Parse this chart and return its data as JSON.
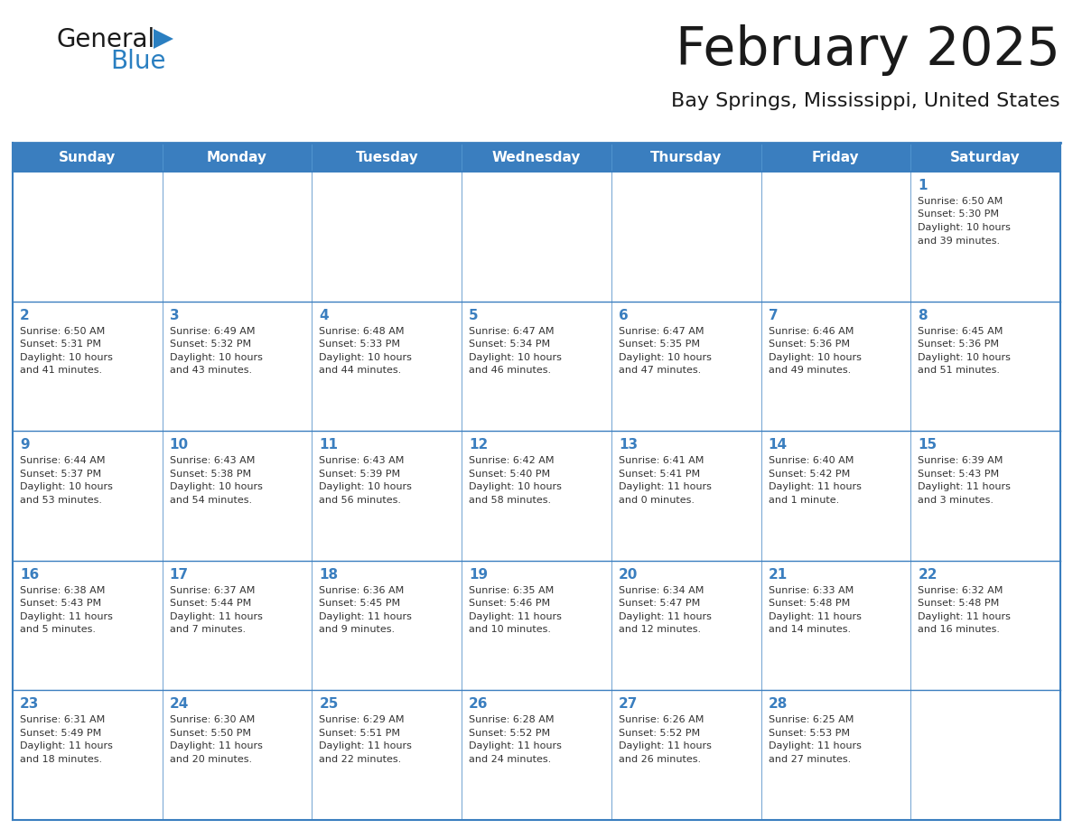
{
  "title": "February 2025",
  "subtitle": "Bay Springs, Mississippi, United States",
  "header_bg": "#3a7ebf",
  "header_text_color": "#ffffff",
  "cell_bg": "#ffffff",
  "border_color": "#3a7ebf",
  "day_headers": [
    "Sunday",
    "Monday",
    "Tuesday",
    "Wednesday",
    "Thursday",
    "Friday",
    "Saturday"
  ],
  "title_color": "#1a1a1a",
  "subtitle_color": "#1a1a1a",
  "day_number_color": "#3a7ebf",
  "cell_text_color": "#333333",
  "weeks": [
    [
      {
        "day": null,
        "info": null
      },
      {
        "day": null,
        "info": null
      },
      {
        "day": null,
        "info": null
      },
      {
        "day": null,
        "info": null
      },
      {
        "day": null,
        "info": null
      },
      {
        "day": null,
        "info": null
      },
      {
        "day": 1,
        "info": "Sunrise: 6:50 AM\nSunset: 5:30 PM\nDaylight: 10 hours\nand 39 minutes."
      }
    ],
    [
      {
        "day": 2,
        "info": "Sunrise: 6:50 AM\nSunset: 5:31 PM\nDaylight: 10 hours\nand 41 minutes."
      },
      {
        "day": 3,
        "info": "Sunrise: 6:49 AM\nSunset: 5:32 PM\nDaylight: 10 hours\nand 43 minutes."
      },
      {
        "day": 4,
        "info": "Sunrise: 6:48 AM\nSunset: 5:33 PM\nDaylight: 10 hours\nand 44 minutes."
      },
      {
        "day": 5,
        "info": "Sunrise: 6:47 AM\nSunset: 5:34 PM\nDaylight: 10 hours\nand 46 minutes."
      },
      {
        "day": 6,
        "info": "Sunrise: 6:47 AM\nSunset: 5:35 PM\nDaylight: 10 hours\nand 47 minutes."
      },
      {
        "day": 7,
        "info": "Sunrise: 6:46 AM\nSunset: 5:36 PM\nDaylight: 10 hours\nand 49 minutes."
      },
      {
        "day": 8,
        "info": "Sunrise: 6:45 AM\nSunset: 5:36 PM\nDaylight: 10 hours\nand 51 minutes."
      }
    ],
    [
      {
        "day": 9,
        "info": "Sunrise: 6:44 AM\nSunset: 5:37 PM\nDaylight: 10 hours\nand 53 minutes."
      },
      {
        "day": 10,
        "info": "Sunrise: 6:43 AM\nSunset: 5:38 PM\nDaylight: 10 hours\nand 54 minutes."
      },
      {
        "day": 11,
        "info": "Sunrise: 6:43 AM\nSunset: 5:39 PM\nDaylight: 10 hours\nand 56 minutes."
      },
      {
        "day": 12,
        "info": "Sunrise: 6:42 AM\nSunset: 5:40 PM\nDaylight: 10 hours\nand 58 minutes."
      },
      {
        "day": 13,
        "info": "Sunrise: 6:41 AM\nSunset: 5:41 PM\nDaylight: 11 hours\nand 0 minutes."
      },
      {
        "day": 14,
        "info": "Sunrise: 6:40 AM\nSunset: 5:42 PM\nDaylight: 11 hours\nand 1 minute."
      },
      {
        "day": 15,
        "info": "Sunrise: 6:39 AM\nSunset: 5:43 PM\nDaylight: 11 hours\nand 3 minutes."
      }
    ],
    [
      {
        "day": 16,
        "info": "Sunrise: 6:38 AM\nSunset: 5:43 PM\nDaylight: 11 hours\nand 5 minutes."
      },
      {
        "day": 17,
        "info": "Sunrise: 6:37 AM\nSunset: 5:44 PM\nDaylight: 11 hours\nand 7 minutes."
      },
      {
        "day": 18,
        "info": "Sunrise: 6:36 AM\nSunset: 5:45 PM\nDaylight: 11 hours\nand 9 minutes."
      },
      {
        "day": 19,
        "info": "Sunrise: 6:35 AM\nSunset: 5:46 PM\nDaylight: 11 hours\nand 10 minutes."
      },
      {
        "day": 20,
        "info": "Sunrise: 6:34 AM\nSunset: 5:47 PM\nDaylight: 11 hours\nand 12 minutes."
      },
      {
        "day": 21,
        "info": "Sunrise: 6:33 AM\nSunset: 5:48 PM\nDaylight: 11 hours\nand 14 minutes."
      },
      {
        "day": 22,
        "info": "Sunrise: 6:32 AM\nSunset: 5:48 PM\nDaylight: 11 hours\nand 16 minutes."
      }
    ],
    [
      {
        "day": 23,
        "info": "Sunrise: 6:31 AM\nSunset: 5:49 PM\nDaylight: 11 hours\nand 18 minutes."
      },
      {
        "day": 24,
        "info": "Sunrise: 6:30 AM\nSunset: 5:50 PM\nDaylight: 11 hours\nand 20 minutes."
      },
      {
        "day": 25,
        "info": "Sunrise: 6:29 AM\nSunset: 5:51 PM\nDaylight: 11 hours\nand 22 minutes."
      },
      {
        "day": 26,
        "info": "Sunrise: 6:28 AM\nSunset: 5:52 PM\nDaylight: 11 hours\nand 24 minutes."
      },
      {
        "day": 27,
        "info": "Sunrise: 6:26 AM\nSunset: 5:52 PM\nDaylight: 11 hours\nand 26 minutes."
      },
      {
        "day": 28,
        "info": "Sunrise: 6:25 AM\nSunset: 5:53 PM\nDaylight: 11 hours\nand 27 minutes."
      },
      {
        "day": null,
        "info": null
      }
    ]
  ],
  "logo_text_general": "General",
  "logo_text_blue": "Blue",
  "logo_text_color_general": "#1a1a1a",
  "logo_text_color_blue": "#2a7fc1",
  "logo_triangle_color": "#2a7fc1"
}
